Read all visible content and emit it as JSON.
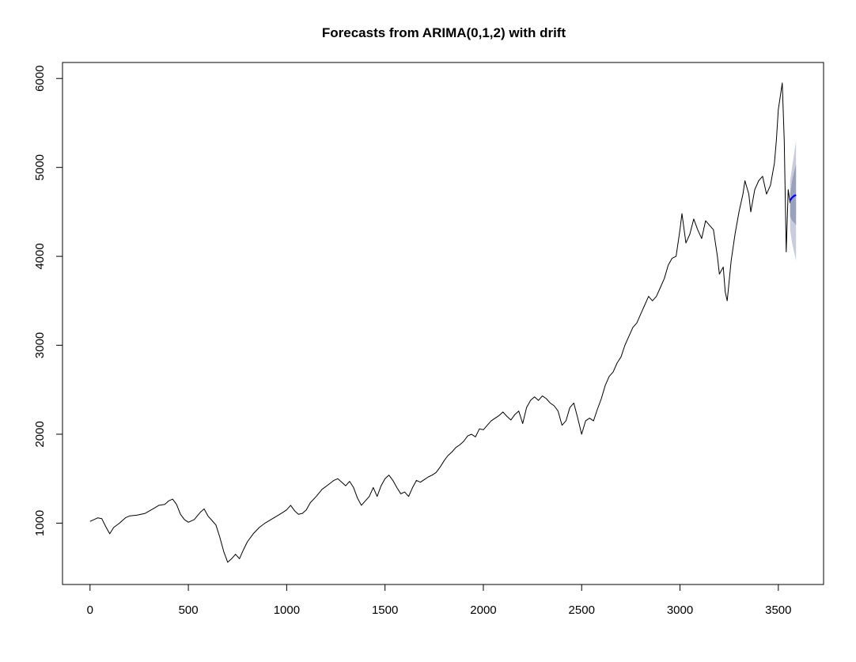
{
  "chart_data": {
    "type": "line",
    "title": "Forecasts from ARIMA(0,1,2) with drift",
    "xlabel": "",
    "ylabel": "",
    "xlim": [
      -140,
      3730
    ],
    "ylim": [
      310,
      6180
    ],
    "x_ticks": [
      0,
      500,
      1000,
      1500,
      2000,
      2500,
      3000,
      3500
    ],
    "y_ticks": [
      1000,
      2000,
      3000,
      4000,
      5000,
      6000
    ],
    "grid": false,
    "series": [
      {
        "color": "#000000",
        "points": [
          [
            0,
            1020
          ],
          [
            20,
            1040
          ],
          [
            40,
            1060
          ],
          [
            60,
            1050
          ],
          [
            80,
            960
          ],
          [
            100,
            880
          ],
          [
            120,
            950
          ],
          [
            150,
            1000
          ],
          [
            180,
            1060
          ],
          [
            200,
            1080
          ],
          [
            240,
            1090
          ],
          [
            280,
            1110
          ],
          [
            320,
            1160
          ],
          [
            350,
            1200
          ],
          [
            380,
            1210
          ],
          [
            400,
            1250
          ],
          [
            420,
            1270
          ],
          [
            440,
            1210
          ],
          [
            460,
            1100
          ],
          [
            480,
            1040
          ],
          [
            500,
            1010
          ],
          [
            530,
            1040
          ],
          [
            560,
            1120
          ],
          [
            580,
            1160
          ],
          [
            600,
            1080
          ],
          [
            620,
            1030
          ],
          [
            640,
            980
          ],
          [
            660,
            840
          ],
          [
            680,
            680
          ],
          [
            700,
            560
          ],
          [
            720,
            600
          ],
          [
            740,
            650
          ],
          [
            760,
            600
          ],
          [
            780,
            700
          ],
          [
            800,
            790
          ],
          [
            830,
            880
          ],
          [
            860,
            950
          ],
          [
            890,
            1000
          ],
          [
            920,
            1040
          ],
          [
            950,
            1080
          ],
          [
            980,
            1120
          ],
          [
            1000,
            1150
          ],
          [
            1020,
            1200
          ],
          [
            1040,
            1140
          ],
          [
            1060,
            1100
          ],
          [
            1080,
            1110
          ],
          [
            1100,
            1150
          ],
          [
            1120,
            1230
          ],
          [
            1150,
            1300
          ],
          [
            1180,
            1380
          ],
          [
            1210,
            1430
          ],
          [
            1240,
            1480
          ],
          [
            1260,
            1500
          ],
          [
            1280,
            1460
          ],
          [
            1300,
            1420
          ],
          [
            1320,
            1470
          ],
          [
            1340,
            1400
          ],
          [
            1360,
            1280
          ],
          [
            1380,
            1200
          ],
          [
            1400,
            1250
          ],
          [
            1420,
            1300
          ],
          [
            1440,
            1400
          ],
          [
            1460,
            1300
          ],
          [
            1480,
            1420
          ],
          [
            1500,
            1500
          ],
          [
            1520,
            1540
          ],
          [
            1540,
            1480
          ],
          [
            1560,
            1400
          ],
          [
            1580,
            1330
          ],
          [
            1600,
            1350
          ],
          [
            1620,
            1300
          ],
          [
            1640,
            1400
          ],
          [
            1660,
            1480
          ],
          [
            1680,
            1460
          ],
          [
            1700,
            1490
          ],
          [
            1720,
            1520
          ],
          [
            1740,
            1540
          ],
          [
            1760,
            1570
          ],
          [
            1780,
            1630
          ],
          [
            1800,
            1700
          ],
          [
            1820,
            1760
          ],
          [
            1840,
            1800
          ],
          [
            1860,
            1850
          ],
          [
            1880,
            1880
          ],
          [
            1900,
            1920
          ],
          [
            1920,
            1980
          ],
          [
            1940,
            2000
          ],
          [
            1960,
            1970
          ],
          [
            1980,
            2060
          ],
          [
            2000,
            2050
          ],
          [
            2020,
            2100
          ],
          [
            2040,
            2150
          ],
          [
            2060,
            2180
          ],
          [
            2080,
            2210
          ],
          [
            2100,
            2250
          ],
          [
            2120,
            2200
          ],
          [
            2140,
            2160
          ],
          [
            2160,
            2220
          ],
          [
            2180,
            2260
          ],
          [
            2200,
            2120
          ],
          [
            2220,
            2300
          ],
          [
            2240,
            2380
          ],
          [
            2260,
            2420
          ],
          [
            2280,
            2380
          ],
          [
            2300,
            2430
          ],
          [
            2320,
            2400
          ],
          [
            2340,
            2350
          ],
          [
            2360,
            2320
          ],
          [
            2380,
            2260
          ],
          [
            2400,
            2100
          ],
          [
            2420,
            2150
          ],
          [
            2440,
            2300
          ],
          [
            2460,
            2350
          ],
          [
            2480,
            2180
          ],
          [
            2500,
            2000
          ],
          [
            2520,
            2150
          ],
          [
            2540,
            2180
          ],
          [
            2560,
            2150
          ],
          [
            2580,
            2280
          ],
          [
            2600,
            2400
          ],
          [
            2620,
            2550
          ],
          [
            2640,
            2650
          ],
          [
            2660,
            2700
          ],
          [
            2680,
            2800
          ],
          [
            2700,
            2870
          ],
          [
            2720,
            3000
          ],
          [
            2740,
            3100
          ],
          [
            2760,
            3200
          ],
          [
            2780,
            3250
          ],
          [
            2800,
            3350
          ],
          [
            2820,
            3450
          ],
          [
            2840,
            3550
          ],
          [
            2860,
            3500
          ],
          [
            2880,
            3550
          ],
          [
            2900,
            3650
          ],
          [
            2920,
            3750
          ],
          [
            2940,
            3900
          ],
          [
            2960,
            3980
          ],
          [
            2980,
            4000
          ],
          [
            3000,
            4300
          ],
          [
            3010,
            4480
          ],
          [
            3030,
            4150
          ],
          [
            3050,
            4250
          ],
          [
            3070,
            4420
          ],
          [
            3090,
            4300
          ],
          [
            3110,
            4200
          ],
          [
            3130,
            4400
          ],
          [
            3150,
            4350
          ],
          [
            3170,
            4300
          ],
          [
            3190,
            4000
          ],
          [
            3200,
            3800
          ],
          [
            3220,
            3880
          ],
          [
            3230,
            3600
          ],
          [
            3240,
            3500
          ],
          [
            3260,
            3950
          ],
          [
            3280,
            4250
          ],
          [
            3300,
            4500
          ],
          [
            3320,
            4700
          ],
          [
            3330,
            4850
          ],
          [
            3350,
            4700
          ],
          [
            3360,
            4500
          ],
          [
            3380,
            4750
          ],
          [
            3400,
            4850
          ],
          [
            3420,
            4900
          ],
          [
            3440,
            4700
          ],
          [
            3460,
            4800
          ],
          [
            3480,
            5050
          ],
          [
            3490,
            5300
          ],
          [
            3500,
            5650
          ],
          [
            3510,
            5800
          ],
          [
            3520,
            5950
          ],
          [
            3530,
            5300
          ],
          [
            3540,
            4050
          ],
          [
            3550,
            4750
          ],
          [
            3560,
            4600
          ]
        ]
      },
      {
        "color": "#0000ff",
        "points": [
          [
            3560,
            4630
          ],
          [
            3570,
            4660
          ],
          [
            3580,
            4680
          ],
          [
            3590,
            4690
          ]
        ]
      }
    ],
    "interval_bands": [
      {
        "color": "#c8ccdd",
        "x": [
          3560,
          3570,
          3580,
          3590
        ],
        "lower": [
          4300,
          4150,
          4050,
          3950
        ],
        "upper": [
          4850,
          5000,
          5150,
          5300
        ]
      },
      {
        "color": "#9aa1bd",
        "x": [
          3560,
          3570,
          3580,
          3590
        ],
        "lower": [
          4450,
          4400,
          4380,
          4350
        ],
        "upper": [
          4700,
          4850,
          4950,
          5030
        ]
      }
    ]
  }
}
